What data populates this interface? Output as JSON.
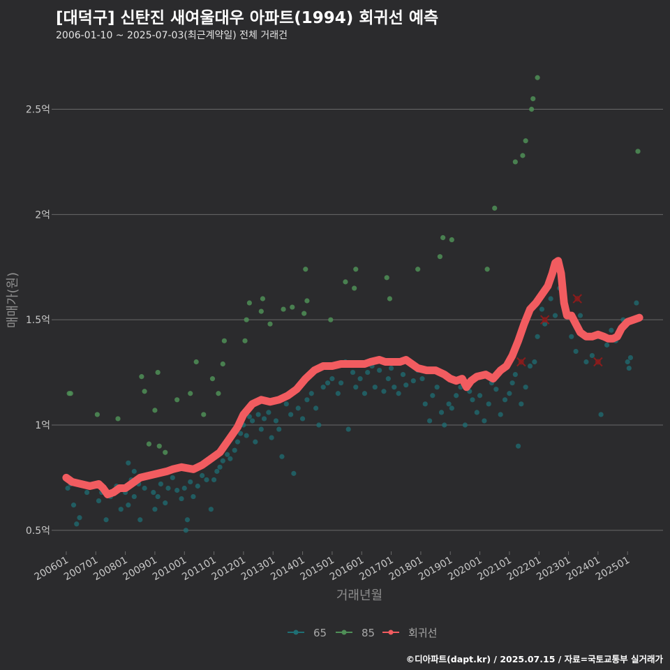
{
  "header": {
    "title": "[대덕구] 신탄진 새여울대우 아파트(1994) 회귀선 예측",
    "subtitle": "2006-01-10 ~ 2025-07-03(최근계약일) 전체 거래건"
  },
  "footer": {
    "credit": "©디아파트(dapt.kr) / 2025.07.15 / 자료=국토교통부 실거래가"
  },
  "colors": {
    "background": "#2b2b2d",
    "grid": "#6a6a6a",
    "series_65": "#1f6f74",
    "series_85": "#4f8f57",
    "regression": "#f25c60",
    "excluded_marker": "#8a1c1c"
  },
  "chart_data": {
    "type": "scatter",
    "title": "[대덕구] 신탄진 새여울대우 아파트(1994) 회귀선 예측",
    "xlabel": "거래년월",
    "ylabel": "매매가(원)",
    "x_ticks": [
      "200601",
      "200701",
      "200801",
      "200901",
      "201001",
      "201101",
      "201201",
      "201301",
      "201401",
      "201501",
      "201601",
      "201701",
      "201801",
      "201901",
      "202001",
      "202101",
      "202201",
      "202301",
      "202401",
      "202501"
    ],
    "y_ticks": [
      {
        "value": 0.5,
        "label": "0.5억"
      },
      {
        "value": 1.0,
        "label": "1억"
      },
      {
        "value": 1.5,
        "label": "1.5억"
      },
      {
        "value": 2.0,
        "label": "2억"
      },
      {
        "value": 2.5,
        "label": "2.5억"
      }
    ],
    "ylim": [
      0.4,
      2.8
    ],
    "xlim": [
      2005.6,
      2026.2
    ],
    "grid": true,
    "legend_position": "bottom",
    "legend": [
      "65",
      "85",
      "회귀선"
    ],
    "series": [
      {
        "name": "65",
        "points": [
          [
            2006.05,
            0.7
          ],
          [
            2006.15,
            0.72
          ],
          [
            2006.25,
            0.62
          ],
          [
            2006.35,
            0.53
          ],
          [
            2006.45,
            0.56
          ],
          [
            2006.7,
            0.68
          ],
          [
            2006.9,
            0.72
          ],
          [
            2007.1,
            0.64
          ],
          [
            2007.2,
            0.68
          ],
          [
            2007.35,
            0.55
          ],
          [
            2007.5,
            0.66
          ],
          [
            2007.7,
            0.71
          ],
          [
            2007.85,
            0.6
          ],
          [
            2008.0,
            0.68
          ],
          [
            2008.1,
            0.62
          ],
          [
            2008.2,
            0.74
          ],
          [
            2008.3,
            0.66
          ],
          [
            2008.45,
            0.72
          ],
          [
            2008.5,
            0.55
          ],
          [
            2008.65,
            0.7
          ],
          [
            2008.8,
            0.76
          ],
          [
            2008.95,
            0.68
          ],
          [
            2008.1,
            0.82
          ],
          [
            2008.3,
            0.78
          ],
          [
            2009.0,
            0.6
          ],
          [
            2009.1,
            0.66
          ],
          [
            2009.2,
            0.72
          ],
          [
            2009.35,
            0.63
          ],
          [
            2009.45,
            0.7
          ],
          [
            2009.6,
            0.75
          ],
          [
            2009.75,
            0.69
          ],
          [
            2009.9,
            0.65
          ],
          [
            2010.0,
            0.7
          ],
          [
            2010.05,
            0.5
          ],
          [
            2010.1,
            0.55
          ],
          [
            2010.2,
            0.73
          ],
          [
            2010.3,
            0.66
          ],
          [
            2010.45,
            0.71
          ],
          [
            2010.6,
            0.76
          ],
          [
            2010.75,
            0.74
          ],
          [
            2010.9,
            0.6
          ],
          [
            2011.0,
            0.74
          ],
          [
            2011.1,
            0.78
          ],
          [
            2011.2,
            0.8
          ],
          [
            2011.3,
            0.83
          ],
          [
            2011.45,
            0.86
          ],
          [
            2011.55,
            0.84
          ],
          [
            2011.7,
            0.88
          ],
          [
            2011.8,
            0.92
          ],
          [
            2011.9,
            0.96
          ],
          [
            2012.0,
            1.0
          ],
          [
            2012.1,
            0.95
          ],
          [
            2012.2,
            1.04
          ],
          [
            2012.3,
            1.02
          ],
          [
            2012.4,
            0.92
          ],
          [
            2012.5,
            1.05
          ],
          [
            2012.6,
            0.98
          ],
          [
            2012.7,
            1.03
          ],
          [
            2012.85,
            1.06
          ],
          [
            2012.95,
            0.94
          ],
          [
            2013.1,
            1.02
          ],
          [
            2013.2,
            0.98
          ],
          [
            2013.3,
            0.85
          ],
          [
            2013.45,
            1.1
          ],
          [
            2013.6,
            1.05
          ],
          [
            2013.7,
            0.77
          ],
          [
            2013.85,
            1.08
          ],
          [
            2014.0,
            1.03
          ],
          [
            2014.15,
            1.12
          ],
          [
            2014.3,
            1.15
          ],
          [
            2014.45,
            1.08
          ],
          [
            2014.55,
            1.0
          ],
          [
            2014.7,
            1.18
          ],
          [
            2014.85,
            1.2
          ],
          [
            2015.0,
            1.22
          ],
          [
            2015.1,
            1.28
          ],
          [
            2015.2,
            1.15
          ],
          [
            2015.3,
            1.2
          ],
          [
            2015.45,
            1.3
          ],
          [
            2015.55,
            0.98
          ],
          [
            2015.7,
            1.25
          ],
          [
            2015.8,
            1.18
          ],
          [
            2015.95,
            1.22
          ],
          [
            2016.1,
            1.15
          ],
          [
            2016.2,
            1.25
          ],
          [
            2016.35,
            1.28
          ],
          [
            2016.45,
            1.18
          ],
          [
            2016.6,
            1.26
          ],
          [
            2016.75,
            1.16
          ],
          [
            2016.9,
            1.22
          ],
          [
            2017.0,
            1.27
          ],
          [
            2017.1,
            1.18
          ],
          [
            2017.25,
            1.15
          ],
          [
            2017.4,
            1.24
          ],
          [
            2017.5,
            1.19
          ],
          [
            2017.6,
            1.3
          ],
          [
            2017.75,
            1.21
          ],
          [
            2017.9,
            1.26
          ],
          [
            2018.05,
            1.22
          ],
          [
            2018.15,
            1.1
          ],
          [
            2018.3,
            1.02
          ],
          [
            2018.4,
            1.14
          ],
          [
            2018.55,
            1.18
          ],
          [
            2018.7,
            1.06
          ],
          [
            2018.8,
            1.0
          ],
          [
            2018.95,
            1.1
          ],
          [
            2019.05,
            1.08
          ],
          [
            2019.2,
            1.14
          ],
          [
            2019.35,
            1.18
          ],
          [
            2019.5,
            1.0
          ],
          [
            2019.65,
            1.16
          ],
          [
            2019.75,
            1.12
          ],
          [
            2019.9,
            1.06
          ],
          [
            2020.0,
            1.14
          ],
          [
            2020.15,
            1.02
          ],
          [
            2020.3,
            1.1
          ],
          [
            2020.4,
            1.2
          ],
          [
            2020.55,
            1.17
          ],
          [
            2020.7,
            1.05
          ],
          [
            2020.85,
            1.12
          ],
          [
            2021.0,
            1.15
          ],
          [
            2021.1,
            1.2
          ],
          [
            2021.2,
            1.24
          ],
          [
            2021.3,
            0.9
          ],
          [
            2021.4,
            1.1
          ],
          [
            2021.55,
            1.18
          ],
          [
            2021.7,
            1.28
          ],
          [
            2021.85,
            1.3
          ],
          [
            2021.95,
            1.42
          ],
          [
            2022.1,
            1.55
          ],
          [
            2022.2,
            1.48
          ],
          [
            2022.4,
            1.6
          ],
          [
            2022.55,
            1.52
          ],
          [
            2022.7,
            1.65
          ],
          [
            2023.1,
            1.42
          ],
          [
            2023.25,
            1.35
          ],
          [
            2023.4,
            1.52
          ],
          [
            2023.6,
            1.3
          ],
          [
            2023.8,
            1.33
          ],
          [
            2024.0,
            1.42
          ],
          [
            2024.1,
            1.05
          ],
          [
            2024.3,
            1.38
          ],
          [
            2024.45,
            1.45
          ],
          [
            2024.6,
            1.4
          ],
          [
            2024.85,
            1.5
          ],
          [
            2025.0,
            1.3
          ],
          [
            2025.05,
            1.27
          ],
          [
            2025.1,
            1.32
          ],
          [
            2025.3,
            1.58
          ]
        ]
      },
      {
        "name": "85",
        "points": [
          [
            2006.1,
            1.15
          ],
          [
            2006.15,
            1.15
          ],
          [
            2007.05,
            1.05
          ],
          [
            2007.75,
            1.03
          ],
          [
            2008.55,
            1.23
          ],
          [
            2008.65,
            1.16
          ],
          [
            2008.8,
            0.91
          ],
          [
            2009.0,
            1.07
          ],
          [
            2009.15,
            0.9
          ],
          [
            2009.1,
            1.25
          ],
          [
            2009.35,
            0.87
          ],
          [
            2009.75,
            1.12
          ],
          [
            2010.2,
            1.15
          ],
          [
            2010.4,
            1.3
          ],
          [
            2010.65,
            1.05
          ],
          [
            2010.95,
            1.22
          ],
          [
            2011.15,
            1.15
          ],
          [
            2011.3,
            1.29
          ],
          [
            2011.35,
            1.4
          ],
          [
            2012.05,
            1.4
          ],
          [
            2012.1,
            1.5
          ],
          [
            2012.2,
            1.58
          ],
          [
            2012.65,
            1.6
          ],
          [
            2012.6,
            1.54
          ],
          [
            2012.9,
            1.48
          ],
          [
            2013.35,
            1.55
          ],
          [
            2013.65,
            1.56
          ],
          [
            2014.05,
            1.53
          ],
          [
            2014.15,
            1.59
          ],
          [
            2014.1,
            1.74
          ],
          [
            2014.95,
            1.5
          ],
          [
            2015.45,
            1.68
          ],
          [
            2015.75,
            1.65
          ],
          [
            2015.8,
            1.74
          ],
          [
            2016.85,
            1.7
          ],
          [
            2016.95,
            1.6
          ],
          [
            2017.9,
            1.74
          ],
          [
            2018.65,
            1.8
          ],
          [
            2018.75,
            1.89
          ],
          [
            2019.05,
            1.88
          ],
          [
            2020.25,
            1.74
          ],
          [
            2020.5,
            2.03
          ],
          [
            2021.2,
            2.25
          ],
          [
            2021.45,
            2.28
          ],
          [
            2021.55,
            2.35
          ],
          [
            2021.75,
            2.5
          ],
          [
            2021.8,
            2.55
          ],
          [
            2021.95,
            2.65
          ],
          [
            2025.35,
            2.3
          ]
        ]
      }
    ],
    "excluded_points": [
      [
        2021.4,
        1.3
      ],
      [
        2022.2,
        1.5
      ],
      [
        2023.3,
        1.6
      ],
      [
        2024.0,
        1.3
      ]
    ],
    "regression": [
      [
        2006.0,
        0.75
      ],
      [
        2006.2,
        0.73
      ],
      [
        2006.5,
        0.72
      ],
      [
        2006.8,
        0.71
      ],
      [
        2007.1,
        0.72
      ],
      [
        2007.25,
        0.7
      ],
      [
        2007.4,
        0.67
      ],
      [
        2007.6,
        0.68
      ],
      [
        2007.8,
        0.7
      ],
      [
        2008.0,
        0.7
      ],
      [
        2008.2,
        0.72
      ],
      [
        2008.5,
        0.75
      ],
      [
        2008.8,
        0.76
      ],
      [
        2009.1,
        0.77
      ],
      [
        2009.4,
        0.78
      ],
      [
        2009.6,
        0.79
      ],
      [
        2009.9,
        0.8
      ],
      [
        2010.3,
        0.79
      ],
      [
        2010.6,
        0.81
      ],
      [
        2010.9,
        0.84
      ],
      [
        2011.2,
        0.87
      ],
      [
        2011.5,
        0.93
      ],
      [
        2011.8,
        0.99
      ],
      [
        2012.0,
        1.05
      ],
      [
        2012.3,
        1.1
      ],
      [
        2012.6,
        1.12
      ],
      [
        2012.9,
        1.11
      ],
      [
        2013.2,
        1.12
      ],
      [
        2013.5,
        1.14
      ],
      [
        2013.8,
        1.17
      ],
      [
        2014.1,
        1.22
      ],
      [
        2014.4,
        1.26
      ],
      [
        2014.7,
        1.28
      ],
      [
        2015.0,
        1.28
      ],
      [
        2015.3,
        1.29
      ],
      [
        2015.6,
        1.29
      ],
      [
        2015.9,
        1.29
      ],
      [
        2016.1,
        1.29
      ],
      [
        2016.3,
        1.3
      ],
      [
        2016.6,
        1.31
      ],
      [
        2016.8,
        1.3
      ],
      [
        2017.1,
        1.3
      ],
      [
        2017.3,
        1.3
      ],
      [
        2017.5,
        1.31
      ],
      [
        2017.7,
        1.29
      ],
      [
        2017.9,
        1.27
      ],
      [
        2018.2,
        1.26
      ],
      [
        2018.5,
        1.26
      ],
      [
        2018.8,
        1.24
      ],
      [
        2019.0,
        1.22
      ],
      [
        2019.2,
        1.21
      ],
      [
        2019.4,
        1.22
      ],
      [
        2019.55,
        1.18
      ],
      [
        2019.7,
        1.21
      ],
      [
        2019.9,
        1.23
      ],
      [
        2020.2,
        1.24
      ],
      [
        2020.45,
        1.22
      ],
      [
        2020.7,
        1.26
      ],
      [
        2020.9,
        1.28
      ],
      [
        2021.1,
        1.33
      ],
      [
        2021.3,
        1.4
      ],
      [
        2021.5,
        1.48
      ],
      [
        2021.7,
        1.55
      ],
      [
        2021.9,
        1.58
      ],
      [
        2022.1,
        1.62
      ],
      [
        2022.3,
        1.66
      ],
      [
        2022.45,
        1.72
      ],
      [
        2022.55,
        1.77
      ],
      [
        2022.65,
        1.78
      ],
      [
        2022.75,
        1.72
      ],
      [
        2022.85,
        1.58
      ],
      [
        2022.95,
        1.52
      ],
      [
        2023.1,
        1.52
      ],
      [
        2023.25,
        1.48
      ],
      [
        2023.4,
        1.44
      ],
      [
        2023.6,
        1.42
      ],
      [
        2023.8,
        1.42
      ],
      [
        2024.0,
        1.43
      ],
      [
        2024.2,
        1.42
      ],
      [
        2024.35,
        1.41
      ],
      [
        2024.5,
        1.41
      ],
      [
        2024.65,
        1.42
      ],
      [
        2024.8,
        1.46
      ],
      [
        2025.0,
        1.49
      ],
      [
        2025.2,
        1.5
      ],
      [
        2025.4,
        1.51
      ]
    ]
  }
}
